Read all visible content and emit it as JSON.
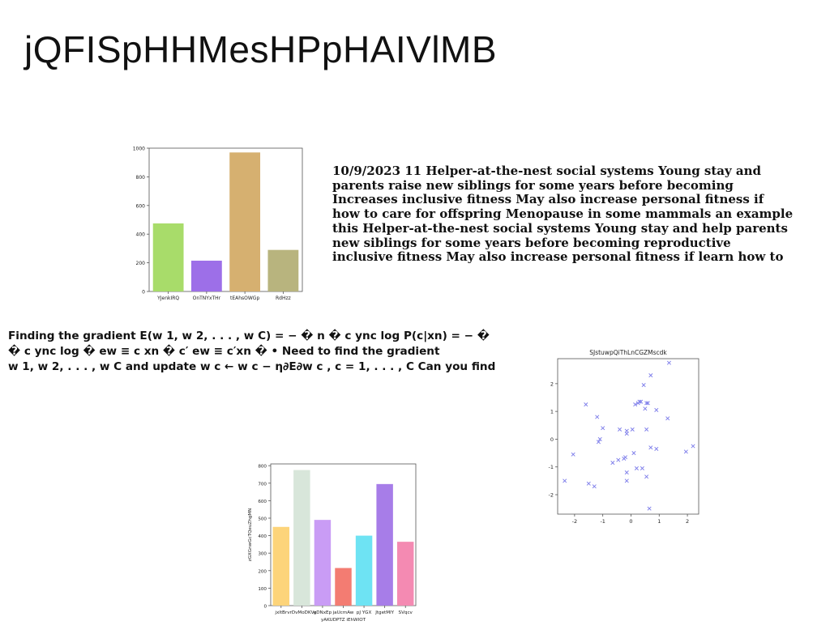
{
  "slide": {
    "title": "jQFISpHHMesHPpHAIVlMB"
  },
  "text_blocks": {
    "right": [
      "10/9/2023 11 Helper-at-the-nest social systems Young stay and",
      "parents raise new siblings for some years before becoming",
      "Increases inclusive fitness May also increase personal fitness if",
      "how to care for offspring Menopause in some mammals an example",
      "this Helper-at-the-nest social systems Young stay and help parents",
      "new siblings for some years before becoming reproductive",
      "inclusive fitness May also increase personal fitness if learn how to"
    ],
    "left": [
      "Finding the gradient E(w 1, w 2, . . . , w C) = − � n � c ync log P(c|xn) = − �",
      "� c ync log � ew ≡ c xn � c′ ew ≡ c′xn � • Need to find the gradient",
      "w 1, w 2, . . . , w C and update w c ← w c − η∂E∂w c , c = 1, . . . , C Can you find"
    ]
  },
  "chart_data": [
    {
      "type": "bar",
      "categories": [
        "YJenkIRQ",
        "OnTNYxTHr",
        "tEAhsOWGp",
        "RdHzz"
      ],
      "values": [
        475,
        215,
        970,
        290
      ],
      "colors": [
        "#a8dc6a",
        "#9d6fe8",
        "#d6b070",
        "#b8b47e"
      ],
      "ylim": [
        0,
        1000
      ],
      "yticks": [
        0,
        200,
        400,
        600,
        800,
        1000
      ],
      "title": "",
      "xlabel": "",
      "ylabel": ""
    },
    {
      "type": "scatter",
      "title": "SJstuwpQiThLnCGZMscdk",
      "xlim": [
        -2.6,
        2.4
      ],
      "ylim": [
        -2.7,
        2.9
      ],
      "xticks": [
        -2,
        -1,
        0,
        1,
        2
      ],
      "yticks": [
        -2,
        -1,
        0,
        1,
        2
      ],
      "marker": "x",
      "color": "#7b7bea",
      "points": [
        [
          -2.35,
          -1.5
        ],
        [
          -2.05,
          -0.55
        ],
        [
          -1.6,
          1.25
        ],
        [
          -1.5,
          -1.6
        ],
        [
          -1.3,
          -1.7
        ],
        [
          -1.2,
          0.8
        ],
        [
          -1.15,
          -0.1
        ],
        [
          -1.1,
          0.0
        ],
        [
          -1.0,
          0.4
        ],
        [
          -0.65,
          -0.85
        ],
        [
          -0.45,
          -0.75
        ],
        [
          -0.4,
          0.35
        ],
        [
          -0.25,
          -0.7
        ],
        [
          -0.2,
          -0.65
        ],
        [
          -0.15,
          -1.2
        ],
        [
          -0.15,
          -1.5
        ],
        [
          -0.15,
          0.2
        ],
        [
          -0.15,
          0.3
        ],
        [
          0.05,
          0.35
        ],
        [
          0.1,
          -0.5
        ],
        [
          0.15,
          1.25
        ],
        [
          0.2,
          -1.05
        ],
        [
          0.25,
          1.3
        ],
        [
          0.3,
          1.35
        ],
        [
          0.35,
          1.35
        ],
        [
          0.4,
          -1.05
        ],
        [
          0.45,
          1.95
        ],
        [
          0.5,
          1.1
        ],
        [
          0.55,
          -1.35
        ],
        [
          0.55,
          1.3
        ],
        [
          0.55,
          0.35
        ],
        [
          0.6,
          1.3
        ],
        [
          0.65,
          -2.5
        ],
        [
          0.7,
          2.3
        ],
        [
          0.7,
          -0.3
        ],
        [
          0.9,
          -0.35
        ],
        [
          0.9,
          1.05
        ],
        [
          1.3,
          0.75
        ],
        [
          1.35,
          2.75
        ],
        [
          1.95,
          -0.45
        ],
        [
          2.2,
          -0.25
        ]
      ],
      "xlabel": "",
      "ylabel": ""
    },
    {
      "type": "bar",
      "categories": [
        "jxltBr",
        "vrDvMoDKVe",
        "gDNxEp",
        "jaUcmAw",
        "pJ YGX",
        "JtgetMlY",
        "SVqcv"
      ],
      "values": [
        450,
        775,
        490,
        215,
        400,
        695,
        365
      ],
      "colors": [
        "#fdd47a",
        "#d8e6da",
        "#c99cf5",
        "#f37c72",
        "#6ee3f3",
        "#a77de8",
        "#f48ab2"
      ],
      "ylim": [
        0,
        810
      ],
      "yticks": [
        0,
        100,
        200,
        300,
        400,
        500,
        600,
        700,
        800
      ],
      "xlabel": "yAKUDPTZ iEhWIOT",
      "ylabel": "zGXGnwGcTQeuZhgMN",
      "title": ""
    }
  ]
}
